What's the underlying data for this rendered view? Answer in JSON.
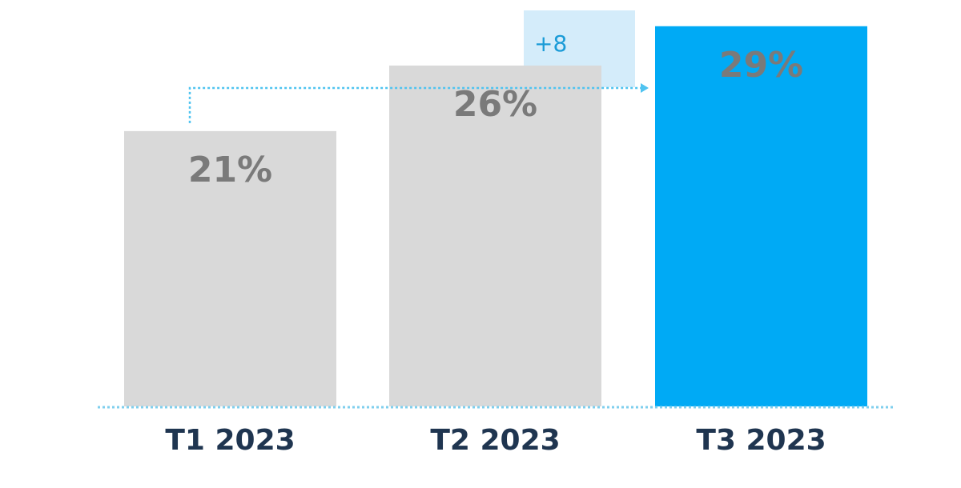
{
  "chart_data": {
    "type": "bar",
    "categories": [
      "T1 2023",
      "T2 2023",
      "T3 2023"
    ],
    "values": [
      21,
      26,
      29
    ],
    "value_labels": [
      "21%",
      "26%",
      "29%"
    ],
    "highlight_index": 2,
    "ylim": [
      0,
      31
    ],
    "grid": false,
    "legend": "none",
    "annotation": {
      "text": "+8",
      "from_index": 0,
      "to_index": 2
    },
    "colors": {
      "bar": "#d9d9d9",
      "highlight": "#00aaf5",
      "value_label": "#7a7a7a",
      "category_label": "#1f3550",
      "annotation_box": "#d4ecfa",
      "annotation_text": "#1a9bd7",
      "connector": "#4fc3f0",
      "baseline": "#7fcfee"
    }
  }
}
